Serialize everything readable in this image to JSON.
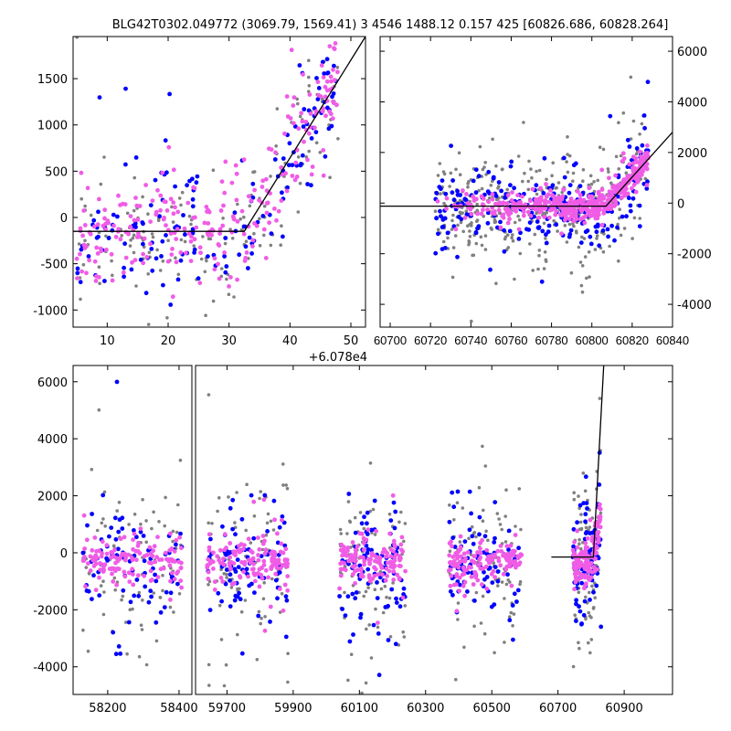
{
  "chart_data": [
    {
      "id": "zoom-last-season",
      "type": "scatter",
      "title": "BLG42T0302.049772 (3069.79, 1569.41)   3 4546 1488.12 0.157 425 [60826.686, 60828.264]",
      "x_offset_label": "+6.078e4",
      "xlim": [
        4.4,
        52.4
      ],
      "ylim": [
        -1185,
        1955
      ],
      "xticks": [
        "10",
        "20",
        "30",
        "40",
        "50"
      ],
      "xtick_values": [
        10,
        20,
        30,
        40,
        50
      ],
      "yticks": [
        "-1000",
        "-500",
        "0",
        "500",
        "1000",
        "1500"
      ],
      "ytick_values": [
        -1000,
        -500,
        0,
        500,
        1000,
        1500
      ],
      "model_line": {
        "x": [
          4.4,
          32.5,
          52.4
        ],
        "y": [
          -150,
          -150,
          1955
        ]
      },
      "scatter_gen": {
        "seasons": [
          [
            5,
            48
          ]
        ],
        "base": -150,
        "follow_model": true,
        "sd": [
          350,
          300,
          280
        ],
        "n": [
          160,
          160,
          260
        ]
      }
    },
    {
      "id": "recent-window",
      "type": "scatter",
      "xlim": [
        60695,
        60840
      ],
      "ylim": [
        -4900,
        6580
      ],
      "xticks": [
        "60700",
        "60720",
        "60740",
        "60760",
        "60780",
        "60800",
        "60820",
        "60840"
      ],
      "xtick_values": [
        60700,
        60720,
        60740,
        60760,
        60780,
        60800,
        60820,
        60840
      ],
      "yticks": [
        "-4000",
        "-2000",
        "0",
        "2000",
        "4000",
        "6000"
      ],
      "ytick_values": [
        -4000,
        -2000,
        0,
        2000,
        4000,
        6000
      ],
      "yaxis_side": "right",
      "model_line": {
        "x": [
          60695,
          60807,
          60840
        ],
        "y": [
          -120,
          -120,
          2800
        ]
      },
      "scatter_gen": {
        "seasons": [
          [
            60722,
            60828
          ]
        ],
        "base": -150,
        "follow_model": true,
        "sd": [
          900,
          700,
          260
        ],
        "n": [
          350,
          250,
          450
        ]
      }
    },
    {
      "id": "full-lightcurve",
      "type": "scatter",
      "broken_xaxis": [
        [
          58103,
          58436
        ],
        [
          59605,
          61046
        ]
      ],
      "ylim": [
        -4970,
        6570
      ],
      "xticks": [
        "58200",
        "58400",
        "59700",
        "59900",
        "60100",
        "60300",
        "60500",
        "60700",
        "60900"
      ],
      "xtick_values": [
        58200,
        58400,
        59700,
        59900,
        60100,
        60300,
        60500,
        60700,
        60900
      ],
      "yticks": [
        "-4000",
        "-2000",
        "0",
        "2000",
        "4000",
        "6000"
      ],
      "ytick_values": [
        -4000,
        -2000,
        0,
        2000,
        4000,
        6000
      ],
      "model_line": {
        "x": [
          60680,
          60807,
          60838
        ],
        "y": [
          -150,
          -150,
          6570
        ]
      },
      "scatter_gen": {
        "seasons": [
          [
            58130,
            58410
          ],
          [
            59640,
            59885
          ],
          [
            60040,
            60240
          ],
          [
            60370,
            60590
          ],
          [
            60745,
            60830
          ]
        ],
        "base": -300,
        "follow_model": false,
        "sd": [
          1300,
          900,
          380
        ],
        "n": [
          260,
          260,
          420
        ]
      }
    }
  ],
  "series": [
    {
      "name": "grey",
      "color": "#808080"
    },
    {
      "name": "blue",
      "color": "#0000ff"
    },
    {
      "name": "magenta",
      "color": "#f05ce6"
    }
  ],
  "line_color": "#000000"
}
